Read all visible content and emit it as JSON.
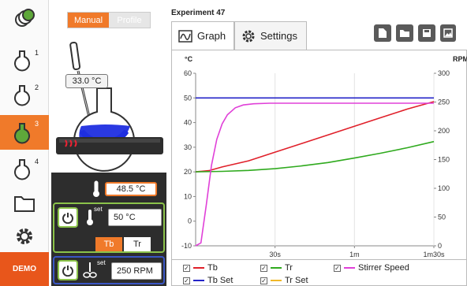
{
  "nav": {
    "items": [
      {
        "name": "all-reactors",
        "label": ""
      },
      {
        "name": "reactor-1",
        "label": "1"
      },
      {
        "name": "reactor-2",
        "label": "2"
      },
      {
        "name": "reactor-3",
        "label": "3",
        "active": true
      },
      {
        "name": "reactor-4",
        "label": "4"
      }
    ],
    "demo_label": "DEMO"
  },
  "panel": {
    "mode_manual": "Manual",
    "mode_profile": "Profile",
    "probe_temp": "33.0 °C",
    "reactor_temp": "48.5 °C",
    "temp_set": "50 °C",
    "set_sup": "set",
    "seg_tb": "Tb",
    "seg_tr": "Tr",
    "stir_set": "250 RPM"
  },
  "header": {
    "experiment_title": "Experiment 47",
    "tab_graph": "Graph",
    "tab_settings": "Settings"
  },
  "colors": {
    "accent": "#f07a2a",
    "tb": "#e0202a",
    "tr": "#2faa1e",
    "stirrer": "#e040d8",
    "tb_set": "#2424c8",
    "tr_set": "#f0b828"
  },
  "chart_data": {
    "type": "line",
    "y_left_label": "°C",
    "y_right_label": "RPM",
    "ylim_left": [
      -10,
      60
    ],
    "ylim_right": [
      0,
      300
    ],
    "y_left_ticks": [
      "60",
      "50",
      "40",
      "30",
      "20",
      "10",
      "0",
      "-10"
    ],
    "y_right_ticks": [
      "300",
      "250",
      "200",
      "150",
      "100",
      "50",
      "0"
    ],
    "x_ticks": [
      "30s",
      "1m",
      "1m30s"
    ],
    "xlim_seconds": [
      0,
      90
    ],
    "series": [
      {
        "name": "Tb",
        "axis": "left",
        "x": [
          0,
          5,
          10,
          20,
          30,
          40,
          50,
          60,
          70,
          80,
          90
        ],
        "y": [
          20,
          20.5,
          22,
          24.5,
          28,
          31.5,
          35,
          38.5,
          42,
          45.5,
          48.5
        ]
      },
      {
        "name": "Tr",
        "axis": "left",
        "x": [
          0,
          10,
          20,
          30,
          40,
          50,
          60,
          70,
          80,
          90
        ],
        "y": [
          20,
          20.2,
          20.6,
          21.3,
          22.4,
          23.8,
          25.6,
          27.6,
          29.8,
          32.3
        ]
      },
      {
        "name": "Stirrer Speed",
        "axis": "right",
        "x": [
          0,
          2,
          4,
          6,
          8,
          10,
          12,
          15,
          18,
          22,
          28,
          40,
          60,
          90
        ],
        "y": [
          0,
          5,
          70,
          140,
          185,
          212,
          228,
          240,
          245,
          247,
          248,
          248,
          248,
          248
        ]
      },
      {
        "name": "Tb Set",
        "axis": "left",
        "x": [
          0,
          90
        ],
        "y": [
          50,
          50
        ]
      }
    ]
  },
  "legend": {
    "items": [
      "Tb",
      "Tr",
      "Stirrer Speed",
      "Tb Set",
      "Tr Set"
    ]
  }
}
